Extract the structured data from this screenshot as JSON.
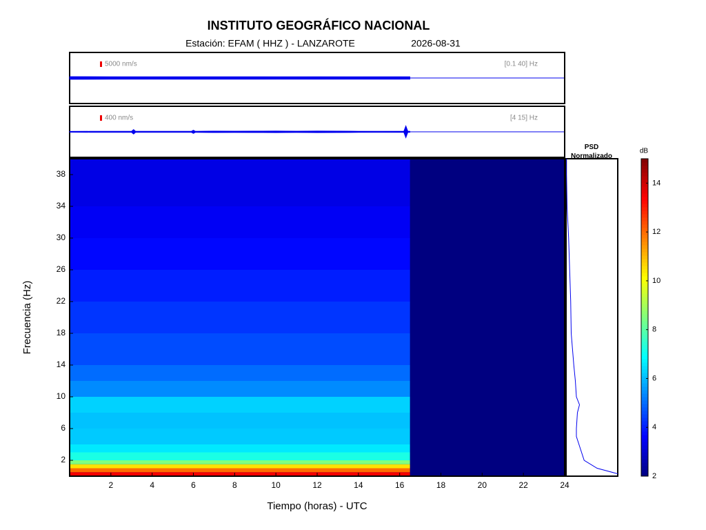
{
  "chart_data": {
    "type": "spectrogram",
    "title": "INSTITUTO GEOGRÁFICO NACIONAL",
    "subtitle": "Estación:  EFAM ( HHZ ) - LANZAROTE",
    "date": "2026-08-31",
    "xlabel": "Tiempo (horas) - UTC",
    "ylabel": "Frecuencia  (Hz)",
    "xlim": [
      0,
      24
    ],
    "ylim": [
      0,
      40
    ],
    "xticks": [
      2,
      4,
      6,
      8,
      10,
      12,
      14,
      16,
      18,
      20,
      22,
      24
    ],
    "yticks": [
      2,
      6,
      10,
      14,
      18,
      22,
      26,
      30,
      34,
      38
    ],
    "data_end": 16.5,
    "freq_edges": [
      0,
      0.5,
      1,
      1.5,
      2,
      3,
      4,
      6,
      8,
      10,
      12,
      14,
      18,
      22,
      26,
      30,
      34,
      40
    ],
    "db": [
      13.5,
      12,
      10.5,
      8.5,
      7.2,
      6.6,
      6.2,
      6.1,
      6.3,
      5.4,
      5.0,
      4.6,
      4.3,
      4.0,
      3.7,
      3.5,
      3.3
    ],
    "colormap": "jet",
    "clabel": "dB",
    "clim": [
      2,
      15
    ],
    "cticks": [
      2,
      4,
      6,
      8,
      10,
      12,
      14
    ],
    "psd_title": "PSD Normalizado",
    "psd_xlim": [
      0,
      1
    ],
    "psd_freqs": [
      0.3,
      1,
      2,
      4,
      5,
      6,
      8,
      9,
      10,
      12,
      14,
      18,
      22,
      26,
      30,
      34,
      38,
      40
    ],
    "psd": [
      1,
      0.6,
      0.35,
      0.25,
      0.2,
      0.2,
      0.22,
      0.26,
      0.2,
      0.18,
      0.15,
      0.1,
      0.09,
      0.07,
      0.05,
      0.02,
      0.01,
      0.01
    ],
    "trace_color": "#0000ee",
    "traces": [
      {
        "scale": {
          "value": 5000,
          "label": "5000 nm/s"
        },
        "filter": "[0.1 40] Hz",
        "t": [
          0,
          2,
          4,
          6,
          8,
          10,
          12,
          14,
          16,
          16.5
        ],
        "amplitude": [
          2600,
          2500,
          2400,
          2500,
          2500,
          2400,
          2500,
          2400,
          2500,
          2400
        ]
      },
      {
        "scale": {
          "value": 400,
          "label": "400 nm/s"
        },
        "filter": "[4 15] Hz",
        "t": [
          0,
          1,
          2,
          3,
          3.1,
          3.2,
          4,
          5,
          5.9,
          6,
          6.1,
          7,
          8,
          9,
          10,
          11,
          12,
          13,
          14,
          15,
          16,
          16.2,
          16.3,
          16.4,
          16.5
        ],
        "amplitude": [
          80,
          90,
          90,
          90,
          350,
          90,
          90,
          90,
          90,
          250,
          90,
          120,
          110,
          120,
          130,
          110,
          130,
          120,
          100,
          90,
          100,
          100,
          900,
          100,
          90
        ]
      }
    ]
  }
}
